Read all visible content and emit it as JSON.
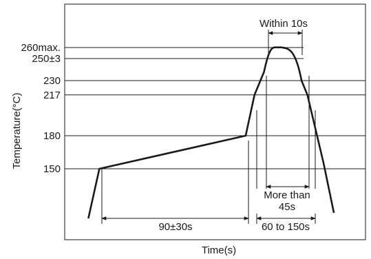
{
  "chart_data": {
    "type": "line",
    "title": "",
    "xlabel": "Time(s)",
    "ylabel": "Temperature(°C)",
    "x_ticks_shown": false,
    "y_ticks": [
      {
        "value": 260,
        "label": "260max."
      },
      {
        "value": 250,
        "label": "250±3"
      },
      {
        "value": 230,
        "label": "230"
      },
      {
        "value": 217,
        "label": "217"
      },
      {
        "value": 180,
        "label": "180"
      },
      {
        "value": 150,
        "label": "150"
      }
    ],
    "ylim": [
      100,
      280
    ],
    "xlim": [
      0,
      380
    ],
    "series": [
      {
        "name": "",
        "x": [
          20,
          35,
          234,
          246,
          259,
          268,
          276,
          287,
          301,
          310,
          318,
          340,
          354
        ],
        "y": [
          105,
          150,
          180,
          217,
          238,
          255,
          259,
          259,
          250,
          230,
          217,
          155,
          110
        ]
      }
    ],
    "annotations": [
      {
        "label": "Within 10s",
        "kind": "interval",
        "x_start": 267,
        "x_end": 296,
        "at_y": 265
      },
      {
        "label": "More than 45s",
        "kind": "interval",
        "x_start": 259,
        "x_end": 318,
        "at_y": 140
      },
      {
        "label": "90±30s",
        "kind": "interval",
        "x_start": 35,
        "x_end": 234,
        "at_y": 100
      },
      {
        "label": "60 to 150s",
        "kind": "interval",
        "x_start": 246,
        "x_end": 318,
        "at_y": 100
      }
    ],
    "grid": false,
    "reference_lines": "horizontal lines at each y tick value"
  }
}
